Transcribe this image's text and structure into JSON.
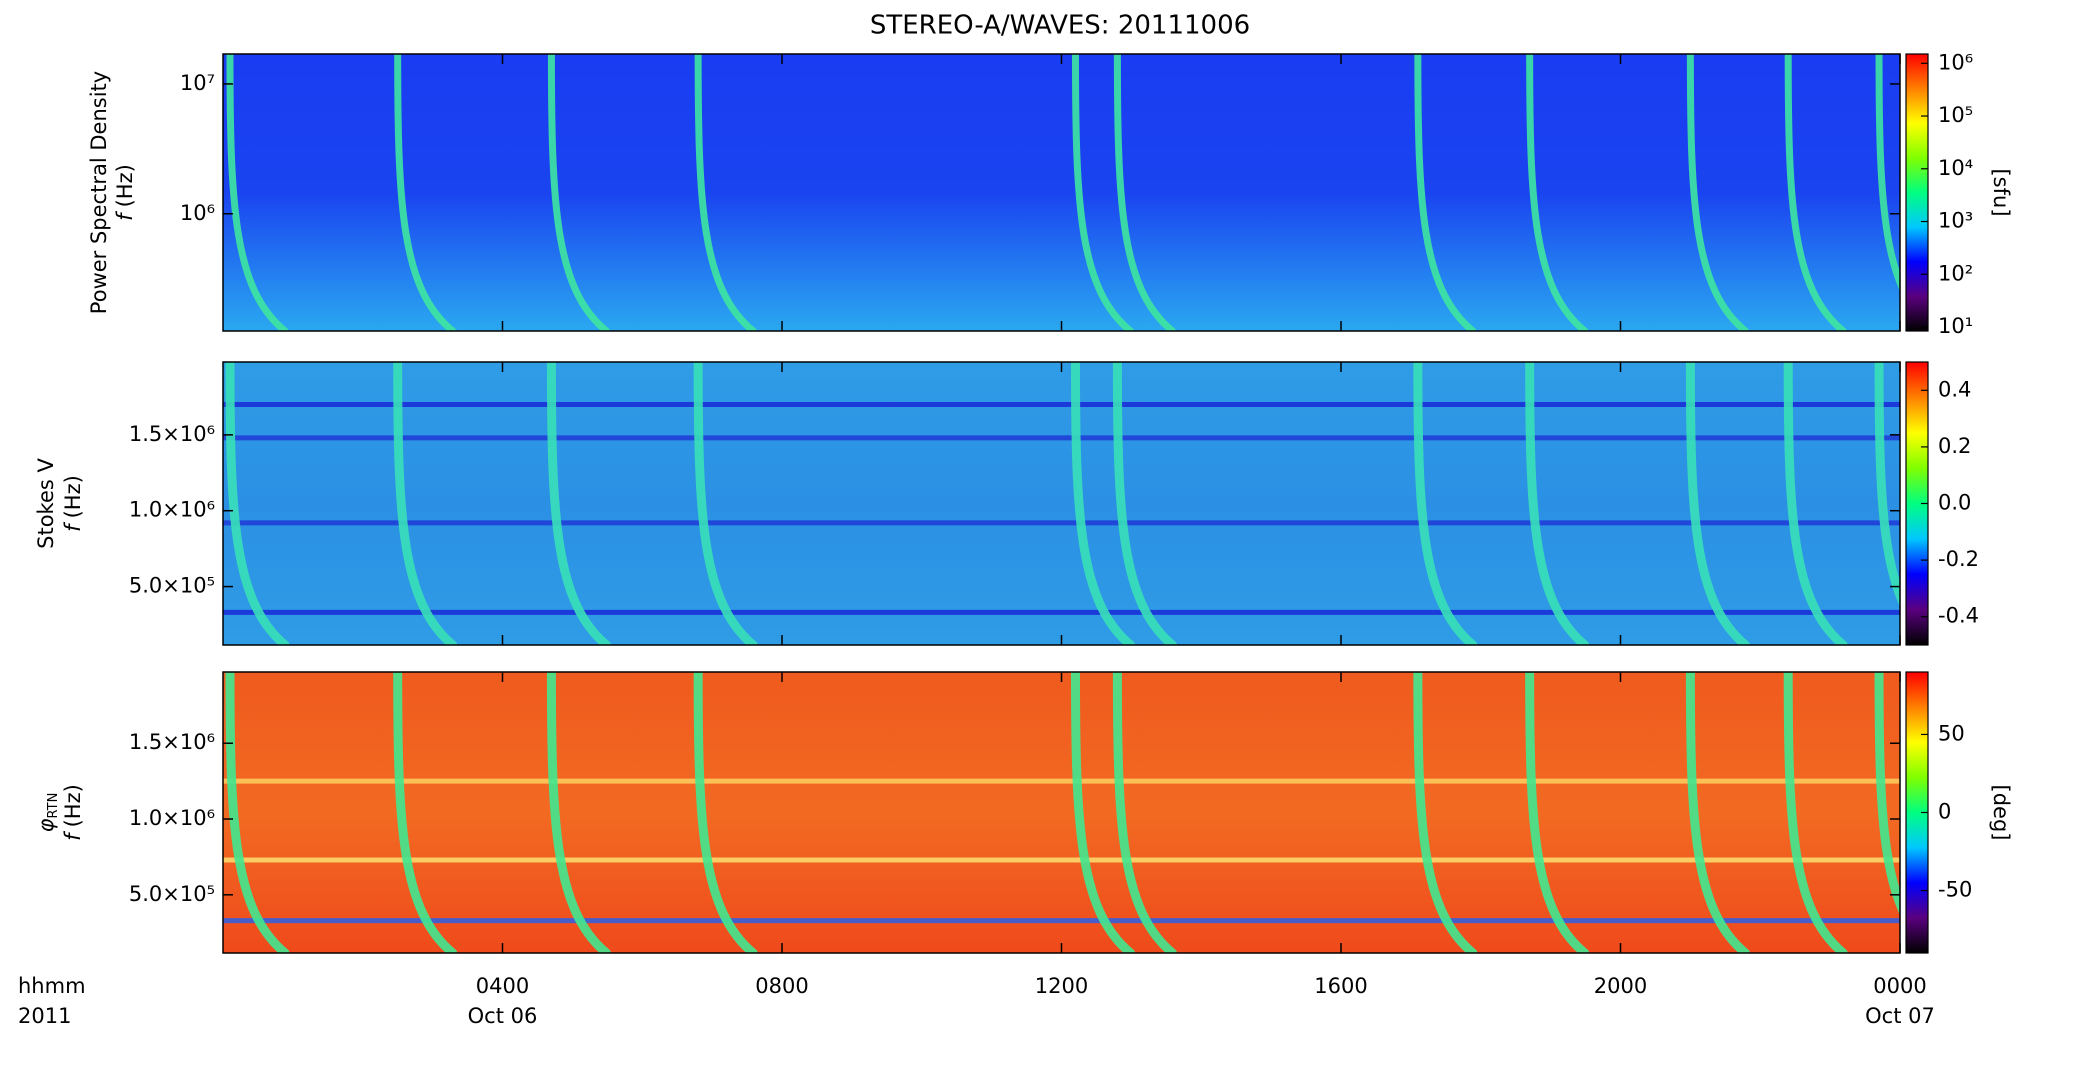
{
  "title": "STEREO-A/WAVES: 20111006",
  "x_axis": {
    "xlim": [
      0,
      24
    ],
    "xticks": [
      {
        "value": 4,
        "label": "0400"
      },
      {
        "value": 8,
        "label": "0800"
      },
      {
        "value": 12,
        "label": "1200"
      },
      {
        "value": 16,
        "label": "1600"
      },
      {
        "value": 20,
        "label": "2000"
      },
      {
        "value": 24,
        "label": "0000"
      }
    ],
    "dates": [
      {
        "value": 4,
        "label": "Oct 06"
      },
      {
        "value": 24,
        "label": "Oct 07"
      }
    ],
    "corner_labels": [
      "hhmm",
      "2011"
    ]
  },
  "bursts": [
    0.1,
    2.5,
    4.7,
    6.8,
    12.2,
    12.8,
    17.1,
    18.7,
    21.0,
    22.4,
    23.7
  ],
  "chart_data": [
    {
      "type": "heatmap",
      "ylabel": [
        "Power Spectral Density",
        "f",
        "(Hz)"
      ],
      "log": true,
      "ylim": [
        125000,
        17000000
      ],
      "yticks": [
        {
          "value": 1000000,
          "label": "10⁶"
        },
        {
          "value": 10000000,
          "label": "10⁷"
        }
      ],
      "background": [
        "#1a3cf2",
        "#1a44f0",
        "#2aa8f0"
      ],
      "burst_color": "#3ee6a0",
      "bands": [],
      "colorbar": {
        "clim": [
          8.4,
          1500000
        ],
        "log": true,
        "label": "[sfu]",
        "ticks": [
          {
            "value": 10,
            "label": "10¹"
          },
          {
            "value": 100,
            "label": "10²"
          },
          {
            "value": 1000,
            "label": "10³"
          },
          {
            "value": 10000,
            "label": "10⁴"
          },
          {
            "value": 100000,
            "label": "10⁵"
          },
          {
            "value": 1000000,
            "label": "10⁶"
          }
        ],
        "colormap": [
          "#000000",
          "#5a007f",
          "#0000ff",
          "#00c8ff",
          "#00ff80",
          "#80ff00",
          "#ffff00",
          "#ff8000",
          "#ff0000"
        ]
      }
    },
    {
      "type": "heatmap",
      "ylabel": [
        "Stokes V",
        "f",
        "(Hz)"
      ],
      "log": false,
      "ylim": [
        115000,
        1980000
      ],
      "yticks": [
        {
          "value": 500000,
          "label": "5.0×10⁵"
        },
        {
          "value": 1000000,
          "label": "1.0×10⁶"
        },
        {
          "value": 1500000,
          "label": "1.5×10⁶"
        }
      ],
      "background": [
        "#2f9ce6",
        "#2b90e4",
        "#2f9ce6"
      ],
      "burst_color": "#38e0b8",
      "bands": [
        {
          "value": 1700000,
          "color": "#1a2ad8"
        },
        {
          "value": 1480000,
          "color": "#1f3ad8"
        },
        {
          "value": 920000,
          "color": "#1f3ad8"
        },
        {
          "value": 330000,
          "color": "#1a2ad8"
        }
      ],
      "colorbar": {
        "clim": [
          -0.5,
          0.5
        ],
        "log": false,
        "label": "",
        "ticks": [
          -0.4,
          -0.2,
          {
            "value": 0,
            "label": "0.0"
          },
          0.2,
          0.4
        ],
        "colormap": [
          "#000000",
          "#5a007f",
          "#0000ff",
          "#00c8ff",
          "#00ff80",
          "#80ff00",
          "#ffff00",
          "#ff8000",
          "#ff0000"
        ]
      }
    },
    {
      "type": "heatmap",
      "ylabel": [
        "φ",
        "RTN",
        "f",
        "(Hz)"
      ],
      "log": false,
      "ylim": [
        116000,
        1970000
      ],
      "yticks": [
        {
          "value": 500000,
          "label": "5.0×10⁵"
        },
        {
          "value": 1000000,
          "label": "1.0×10⁶"
        },
        {
          "value": 1500000,
          "label": "1.5×10⁶"
        }
      ],
      "background": [
        "#f05a1e",
        "#f26a22",
        "#ef4a1c"
      ],
      "burst_color": "#40e890",
      "bands": [
        {
          "value": 1250000,
          "color": "#ffd060"
        },
        {
          "value": 730000,
          "color": "#ffe070"
        },
        {
          "value": 330000,
          "color": "#2a60e8"
        }
      ],
      "colorbar": {
        "clim": [
          -90,
          90
        ],
        "log": false,
        "label": "[deg]",
        "ticks": [
          -50,
          0,
          50
        ],
        "colormap": [
          "#000000",
          "#5a007f",
          "#0000ff",
          "#00c8ff",
          "#00ff80",
          "#80ff00",
          "#ffff00",
          "#ff8000",
          "#ff0000"
        ]
      }
    }
  ]
}
